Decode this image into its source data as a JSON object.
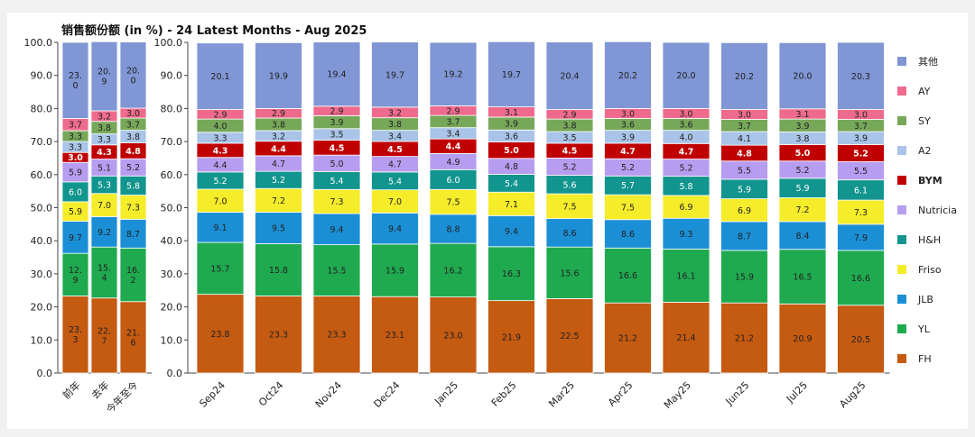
{
  "chart_data": {
    "type": "bar",
    "stacked": true,
    "title": "销售额份额 (in %) - 24 Latest Months - Aug 2025",
    "xlabel": "",
    "ylabel": "",
    "ylim": [
      0,
      100
    ],
    "y_ticks": [
      "0.0",
      "10.0",
      "20.0",
      "30.0",
      "40.0",
      "50.0",
      "60.0",
      "70.0",
      "80.0",
      "90.0",
      "100.0"
    ],
    "grid": false,
    "legend_position": "right",
    "panels": [
      {
        "categories": [
          "前年",
          "去年",
          "今年至今"
        ],
        "series": [
          {
            "name": "FH",
            "color": "#c55a11",
            "values": [
              23.3,
              22.7,
              21.6
            ],
            "labels": [
              "23.\n3",
              "22.\n7",
              "21.\n6"
            ]
          },
          {
            "name": "YL",
            "color": "#1faa4f",
            "values": [
              12.9,
              15.4,
              16.2
            ],
            "labels": [
              "12.\n9",
              "15.\n4",
              "16.\n2"
            ]
          },
          {
            "name": "JLB",
            "color": "#1b8fd6",
            "values": [
              9.7,
              9.2,
              8.7
            ],
            "labels": [
              "9.7",
              "9.2",
              "8.7"
            ]
          },
          {
            "name": "Friso",
            "color": "#f5ec2a",
            "values": [
              5.9,
              7.0,
              7.3
            ],
            "labels": [
              "5.9",
              "7.0",
              "7.3"
            ]
          },
          {
            "name": "H&H",
            "color": "#12958e",
            "values": [
              6.0,
              5.3,
              5.8
            ],
            "labels": [
              "6.0",
              "5.3",
              "5.8"
            ]
          },
          {
            "name": "Nutricia",
            "color": "#b79df0",
            "values": [
              5.9,
              5.1,
              5.2
            ],
            "labels": [
              "5.9",
              "5.1",
              "5.2"
            ]
          },
          {
            "name": "BYM",
            "color": "#c00000",
            "values": [
              3.0,
              4.3,
              4.8
            ],
            "labels": [
              "3.0",
              "4.3",
              "4.8"
            ]
          },
          {
            "name": "A2",
            "color": "#a9c4e8",
            "values": [
              3.3,
              3.3,
              3.8
            ],
            "labels": [
              "3.3",
              "3.3",
              "3.8"
            ]
          },
          {
            "name": "SY",
            "color": "#77a85a",
            "values": [
              3.3,
              3.8,
              3.7
            ],
            "labels": [
              "3.3",
              "3.8",
              "3.7"
            ]
          },
          {
            "name": "AY",
            "color": "#ee6b8e",
            "values": [
              3.7,
              3.2,
              3.0
            ],
            "labels": [
              "3.7",
              "3.2",
              "3.0"
            ]
          },
          {
            "name": "其他",
            "color": "#8096d5",
            "values": [
              23.0,
              20.9,
              20.0
            ],
            "labels": [
              "23.\n0",
              "20.\n9",
              "20.\n0"
            ]
          }
        ]
      },
      {
        "categories": [
          "Sep24",
          "Oct24",
          "Nov24",
          "Dec24",
          "Jan25",
          "Feb25",
          "Mar25",
          "Apr25",
          "May25",
          "Jun25",
          "Jul25",
          "Aug25"
        ],
        "series": [
          {
            "name": "FH",
            "color": "#c55a11",
            "values": [
              23.8,
              23.3,
              23.3,
              23.1,
              23.0,
              21.9,
              22.5,
              21.2,
              21.4,
              21.2,
              20.9,
              20.5
            ]
          },
          {
            "name": "YL",
            "color": "#1faa4f",
            "values": [
              15.7,
              15.8,
              15.5,
              15.9,
              16.2,
              16.3,
              15.6,
              16.6,
              16.1,
              15.9,
              16.5,
              16.6
            ]
          },
          {
            "name": "JLB",
            "color": "#1b8fd6",
            "values": [
              9.1,
              9.5,
              9.4,
              9.4,
              8.8,
              9.4,
              8.6,
              8.6,
              9.3,
              8.7,
              8.4,
              7.9
            ]
          },
          {
            "name": "Friso",
            "color": "#f5ec2a",
            "values": [
              7.0,
              7.2,
              7.3,
              7.0,
              7.5,
              7.1,
              7.5,
              7.5,
              6.9,
              6.9,
              7.2,
              7.3
            ]
          },
          {
            "name": "H&H",
            "color": "#12958e",
            "values": [
              5.2,
              5.2,
              5.4,
              5.4,
              6.0,
              5.4,
              5.6,
              5.7,
              5.8,
              5.9,
              5.9,
              6.1
            ]
          },
          {
            "name": "Nutricia",
            "color": "#b79df0",
            "values": [
              4.4,
              4.7,
              5.0,
              4.7,
              4.9,
              4.8,
              5.2,
              5.2,
              5.2,
              5.5,
              5.2,
              5.5
            ]
          },
          {
            "name": "BYM",
            "color": "#c00000",
            "values": [
              4.3,
              4.4,
              4.5,
              4.5,
              4.4,
              5.0,
              4.5,
              4.7,
              4.7,
              4.8,
              5.0,
              5.2
            ]
          },
          {
            "name": "A2",
            "color": "#a9c4e8",
            "values": [
              3.3,
              3.2,
              3.5,
              3.4,
              3.4,
              3.6,
              3.5,
              3.9,
              4.0,
              4.1,
              3.8,
              3.9
            ]
          },
          {
            "name": "SY",
            "color": "#77a85a",
            "values": [
              4.0,
              3.8,
              3.9,
              3.8,
              3.7,
              3.9,
              3.8,
              3.6,
              3.6,
              3.7,
              3.9,
              3.7
            ]
          },
          {
            "name": "AY",
            "color": "#ee6b8e",
            "values": [
              2.9,
              2.9,
              2.9,
              3.2,
              2.9,
              3.1,
              2.9,
              3.0,
              3.0,
              3.0,
              3.1,
              3.0
            ]
          },
          {
            "name": "其他",
            "color": "#8096d5",
            "values": [
              20.1,
              19.9,
              19.4,
              19.7,
              19.2,
              19.7,
              20.4,
              20.2,
              20.0,
              20.2,
              20.0,
              20.3
            ]
          }
        ]
      }
    ],
    "legend": [
      {
        "name": "其他",
        "color": "#8096d5"
      },
      {
        "name": "AY",
        "color": "#ee6b8e"
      },
      {
        "name": "SY",
        "color": "#77a85a"
      },
      {
        "name": "A2",
        "color": "#a9c4e8"
      },
      {
        "name": "BYM",
        "color": "#c00000",
        "bold": true
      },
      {
        "name": "Nutricia",
        "color": "#b79df0"
      },
      {
        "name": "H&H",
        "color": "#12958e"
      },
      {
        "name": "Friso",
        "color": "#f5ec2a"
      },
      {
        "name": "JLB",
        "color": "#1b8fd6"
      },
      {
        "name": "YL",
        "color": "#1faa4f"
      },
      {
        "name": "FH",
        "color": "#c55a11"
      }
    ]
  }
}
